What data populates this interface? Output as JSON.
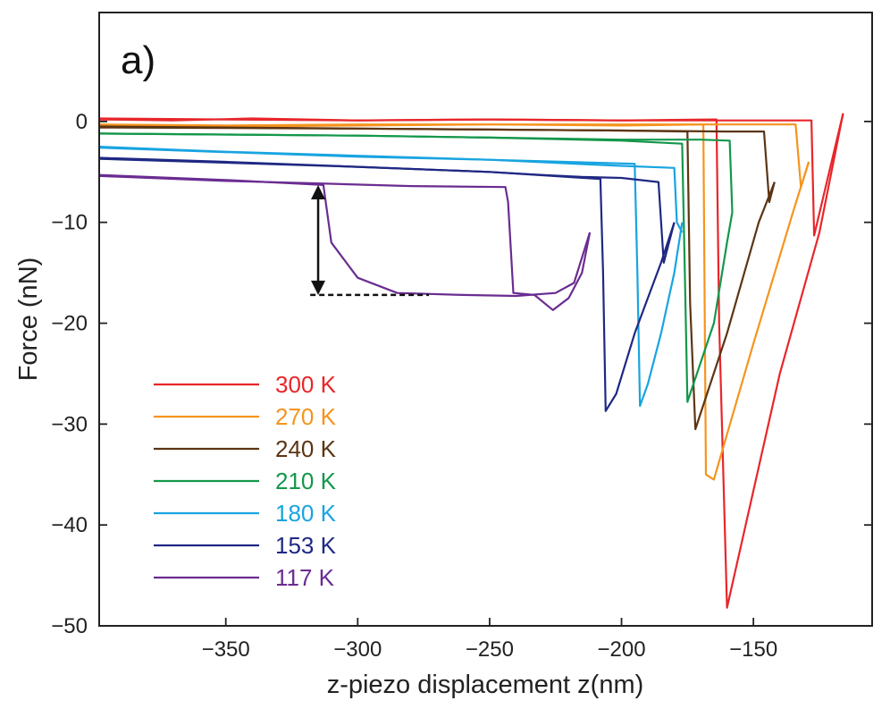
{
  "chart_data": {
    "type": "line",
    "panel_label": "a)",
    "xlabel": "z-piezo displacement z(nm)",
    "ylabel": "Force (nN)",
    "xlim": [
      -398,
      -105
    ],
    "ylim": [
      -50,
      10.8
    ],
    "xticks": [
      -350,
      -300,
      -250,
      -200,
      -150
    ],
    "yticks": [
      0,
      -10,
      -20,
      -30,
      -40,
      -50
    ],
    "xtick_labels": [
      "−350",
      "−300",
      "−250",
      "−200",
      "−150"
    ],
    "ytick_labels": [
      "0",
      "−10",
      "−20",
      "−30",
      "−40",
      "−50"
    ],
    "legend_position": "lower-left",
    "series": [
      {
        "name": "300 K",
        "color": "#e8262b",
        "approach": [
          [
            -398,
            0.2
          ],
          [
            -370,
            0.1
          ],
          [
            -340,
            0.3
          ],
          [
            -300,
            0.1
          ],
          [
            -250,
            0.2
          ],
          [
            -200,
            0.1
          ],
          [
            -170,
            0.1
          ],
          [
            -128,
            0.1
          ],
          [
            -127,
            -11.3
          ],
          [
            -116,
            0.8
          ]
        ],
        "retract": [
          [
            -116,
            0.8
          ],
          [
            -125,
            -11
          ],
          [
            -140,
            -25
          ],
          [
            -160,
            -48.2
          ],
          [
            -163,
            -20
          ],
          [
            -164,
            0.2
          ],
          [
            -200,
            0.1
          ],
          [
            -250,
            0.2
          ],
          [
            -300,
            0.1
          ],
          [
            -350,
            0.2
          ],
          [
            -398,
            0.3
          ]
        ]
      },
      {
        "name": "270 K",
        "color": "#f5941e",
        "approach": [
          [
            -398,
            -0.3
          ],
          [
            -350,
            -0.4
          ],
          [
            -300,
            -0.3
          ],
          [
            -250,
            -0.3
          ],
          [
            -200,
            -0.3
          ],
          [
            -150,
            -0.3
          ],
          [
            -134,
            -0.3
          ],
          [
            -132,
            -6.5
          ],
          [
            -129,
            -4
          ]
        ],
        "retract": [
          [
            -129,
            -4
          ],
          [
            -135,
            -9
          ],
          [
            -150,
            -22
          ],
          [
            -165,
            -35.5
          ],
          [
            -168,
            -35
          ],
          [
            -169,
            -0.3
          ],
          [
            -200,
            -0.4
          ],
          [
            -250,
            -0.3
          ],
          [
            -300,
            -0.4
          ],
          [
            -350,
            -0.5
          ],
          [
            -398,
            -0.4
          ]
        ]
      },
      {
        "name": "240 K",
        "color": "#5c3513",
        "approach": [
          [
            -398,
            -0.5
          ],
          [
            -350,
            -0.6
          ],
          [
            -300,
            -0.7
          ],
          [
            -250,
            -0.8
          ],
          [
            -200,
            -0.9
          ],
          [
            -160,
            -1.0
          ],
          [
            -146,
            -1.0
          ],
          [
            -144,
            -8
          ],
          [
            -142,
            -6
          ]
        ],
        "retract": [
          [
            -142,
            -6
          ],
          [
            -148,
            -10
          ],
          [
            -160,
            -21
          ],
          [
            -172,
            -30.5
          ],
          [
            -174,
            -18
          ],
          [
            -175,
            -1.0
          ],
          [
            -200,
            -0.9
          ],
          [
            -250,
            -0.8
          ],
          [
            -300,
            -0.7
          ],
          [
            -398,
            -0.6
          ]
        ]
      },
      {
        "name": "210 K",
        "color": "#14974a",
        "approach": [
          [
            -398,
            -1.2
          ],
          [
            -350,
            -1.3
          ],
          [
            -300,
            -1.4
          ],
          [
            -250,
            -1.6
          ],
          [
            -200,
            -1.8
          ],
          [
            -170,
            -1.8
          ],
          [
            -159,
            -1.9
          ],
          [
            -158,
            -9
          ]
        ],
        "retract": [
          [
            -158,
            -9
          ],
          [
            -160,
            -12
          ],
          [
            -165,
            -20
          ],
          [
            -175,
            -27.8
          ],
          [
            -176,
            -15
          ],
          [
            -177,
            -2.2
          ],
          [
            -200,
            -1.9
          ],
          [
            -250,
            -1.6
          ],
          [
            -300,
            -1.4
          ],
          [
            -398,
            -1.2
          ]
        ]
      },
      {
        "name": "180 K",
        "color": "#18a4e0",
        "approach": [
          [
            -398,
            -2.5
          ],
          [
            -350,
            -3.0
          ],
          [
            -300,
            -3.4
          ],
          [
            -250,
            -3.8
          ],
          [
            -200,
            -4.4
          ],
          [
            -180,
            -4.6
          ],
          [
            -179,
            -10
          ],
          [
            -177,
            -11
          ]
        ],
        "retract": [
          [
            -177,
            -10
          ],
          [
            -180,
            -15
          ],
          [
            -185,
            -21
          ],
          [
            -190,
            -26
          ],
          [
            -193,
            -28.2
          ],
          [
            -194,
            -15
          ],
          [
            -195,
            -4.2
          ],
          [
            -250,
            -3.8
          ],
          [
            -300,
            -3.5
          ],
          [
            -398,
            -2.6
          ]
        ]
      },
      {
        "name": "153 K",
        "color": "#1f2883",
        "approach": [
          [
            -398,
            -3.6
          ],
          [
            -350,
            -4.0
          ],
          [
            -300,
            -4.5
          ],
          [
            -250,
            -5.0
          ],
          [
            -230,
            -5.3
          ],
          [
            -215,
            -5.5
          ],
          [
            -200,
            -5.6
          ],
          [
            -186,
            -6.0
          ],
          [
            -184,
            -14
          ],
          [
            -180,
            -10
          ]
        ],
        "retract": [
          [
            -180,
            -10
          ],
          [
            -185,
            -14
          ],
          [
            -195,
            -21
          ],
          [
            -202,
            -27
          ],
          [
            -206,
            -28.7
          ],
          [
            -207,
            -15
          ],
          [
            -208,
            -5.7
          ],
          [
            -250,
            -5.0
          ],
          [
            -300,
            -4.5
          ],
          [
            -398,
            -3.7
          ]
        ]
      },
      {
        "name": "117 K",
        "color": "#6a2c91",
        "approach": [
          [
            -398,
            -5.3
          ],
          [
            -350,
            -5.8
          ],
          [
            -320,
            -6.2
          ],
          [
            -313,
            -6.3
          ],
          [
            -310,
            -12
          ],
          [
            -300,
            -15.5
          ],
          [
            -285,
            -17
          ],
          [
            -260,
            -17.2
          ],
          [
            -240,
            -17.3
          ],
          [
            -225,
            -17.0
          ],
          [
            -218,
            -16
          ],
          [
            -212,
            -11
          ]
        ],
        "retract": [
          [
            -212,
            -11
          ],
          [
            -215,
            -15
          ],
          [
            -220,
            -17.5
          ],
          [
            -226,
            -18.7
          ],
          [
            -233,
            -17.2
          ],
          [
            -241,
            -17.0
          ],
          [
            -243,
            -8
          ],
          [
            -244,
            -6.5
          ],
          [
            -280,
            -6.4
          ],
          [
            -320,
            -6.1
          ],
          [
            -350,
            -5.9
          ],
          [
            -398,
            -5.4
          ]
        ]
      }
    ],
    "annotation": {
      "arrow_x": -315,
      "arrow_top": -6.3,
      "arrow_bottom": -17.2,
      "dashed_line_x": [
        -318,
        -273
      ],
      "dashed_line_y": -17.2
    }
  }
}
